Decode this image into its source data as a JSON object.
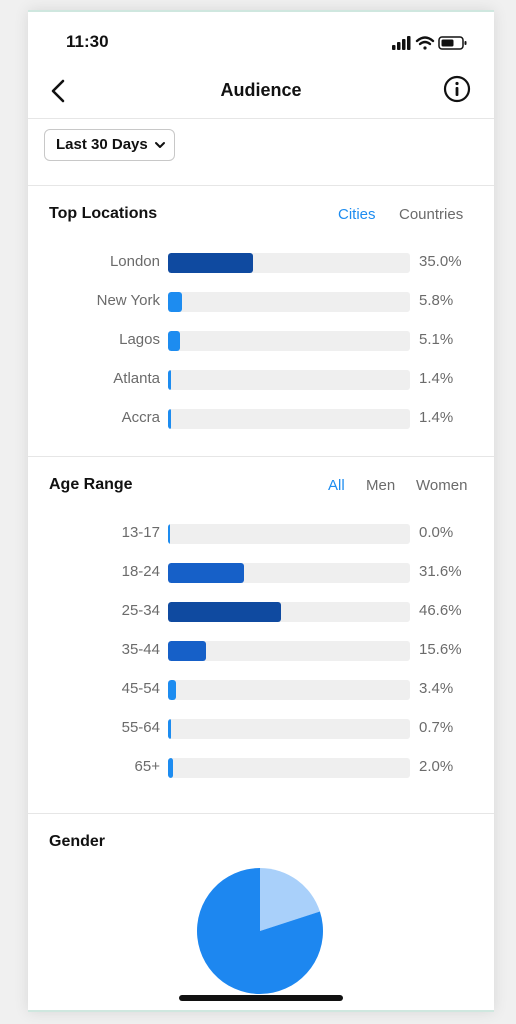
{
  "status_bar": {
    "time": "11:30"
  },
  "header": {
    "title": "Audience"
  },
  "date_filter": {
    "label": "Last 30 Days"
  },
  "top_locations": {
    "title": "Top Locations",
    "tabs": [
      {
        "label": "Cities",
        "active": true
      },
      {
        "label": "Countries",
        "active": false
      }
    ],
    "rows": [
      {
        "label": "London",
        "value": "35.0%",
        "fraction": 0.35,
        "color": "#0f4aa0"
      },
      {
        "label": "New York",
        "value": "5.8%",
        "fraction": 0.058,
        "color": "#1d8cf0"
      },
      {
        "label": "Lagos",
        "value": "5.1%",
        "fraction": 0.051,
        "color": "#1d8cf0"
      },
      {
        "label": "Atlanta",
        "value": "1.4%",
        "fraction": 0.014,
        "color": "#1d8cf0"
      },
      {
        "label": "Accra",
        "value": "1.4%",
        "fraction": 0.014,
        "color": "#1d8cf0"
      }
    ]
  },
  "age_range": {
    "title": "Age Range",
    "tabs": [
      {
        "label": "All",
        "active": true
      },
      {
        "label": "Men",
        "active": false
      },
      {
        "label": "Women",
        "active": false
      }
    ],
    "rows": [
      {
        "label": "13-17",
        "value": "0.0%",
        "fraction": 0.0,
        "color": "#1d8cf0"
      },
      {
        "label": "18-24",
        "value": "31.6%",
        "fraction": 0.316,
        "color": "#1660c8"
      },
      {
        "label": "25-34",
        "value": "46.6%",
        "fraction": 0.466,
        "color": "#0f4aa0"
      },
      {
        "label": "35-44",
        "value": "15.6%",
        "fraction": 0.156,
        "color": "#1660c8"
      },
      {
        "label": "45-54",
        "value": "3.4%",
        "fraction": 0.034,
        "color": "#1d8cf0"
      },
      {
        "label": "55-64",
        "value": "0.7%",
        "fraction": 0.007,
        "color": "#1d8cf0"
      },
      {
        "label": "65+",
        "value": "2.0%",
        "fraction": 0.02,
        "color": "#1d8cf0"
      }
    ]
  },
  "gender": {
    "title": "Gender",
    "slices": [
      {
        "fraction": 0.2,
        "color": "#a9d0fa"
      },
      {
        "fraction": 0.8,
        "color": "#1d87f0"
      }
    ]
  },
  "colors": {
    "accent": "#1d8cf0",
    "bar_track": "#efefef",
    "text_muted": "#6b6b6b"
  }
}
